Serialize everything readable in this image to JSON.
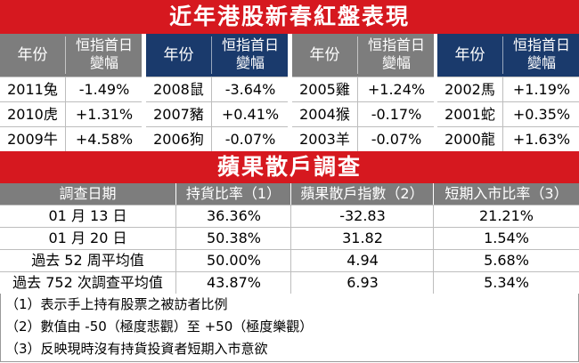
{
  "title1": "近年港股新春紅盤表現",
  "title2": "蘋果散戶調查",
  "cny": {
    "year_header": "年份",
    "change_header_line1": "恒指首日",
    "change_header_line2": "變幅",
    "groups": [
      {
        "rows": [
          {
            "year": "2011兔",
            "change": "-1.49%"
          },
          {
            "year": "2010虎",
            "change": "+1.31%"
          },
          {
            "year": "2009牛",
            "change": "+4.58%"
          }
        ]
      },
      {
        "rows": [
          {
            "year": "2008鼠",
            "change": "-3.64%"
          },
          {
            "year": "2007豬",
            "change": "+0.41%"
          },
          {
            "year": "2006狗",
            "change": "-0.07%"
          }
        ]
      },
      {
        "rows": [
          {
            "year": "2005雞",
            "change": "+1.24%"
          },
          {
            "year": "2004猴",
            "change": "-0.17%"
          },
          {
            "year": "2003羊",
            "change": "-0.07%"
          }
        ]
      },
      {
        "rows": [
          {
            "year": "2002馬",
            "change": "+1.19%"
          },
          {
            "year": "2001蛇",
            "change": "+0.35%"
          },
          {
            "year": "2000龍",
            "change": "+1.63%"
          }
        ]
      }
    ]
  },
  "survey": {
    "headers": [
      "調查日期",
      "持貨比率（1）",
      "蘋果散戶指數（2）",
      "短期入市比率（3）"
    ],
    "rows": [
      [
        "01 月 13 日",
        "36.36%",
        "-32.83",
        "21.21%"
      ],
      [
        "01 月 20 日",
        "50.38%",
        "31.82",
        "1.54%"
      ],
      [
        "過去 52 周平均值",
        "50.00%",
        "4.94",
        "5.68%"
      ],
      [
        "過去 752 次調查平均值",
        "43.87%",
        "6.93",
        "5.34%"
      ]
    ]
  },
  "notes": [
    "（1）表示手上持有股票之被訪者比例",
    "（2）數值由 -50（極度悲觀）至 +50（極度樂觀）",
    "（3）反映現時沒有持貨投資者短期入市意欲"
  ],
  "colors": {
    "red": "#d6181f",
    "grey": "#7d7d7d",
    "navy": "#1a3a6c"
  }
}
